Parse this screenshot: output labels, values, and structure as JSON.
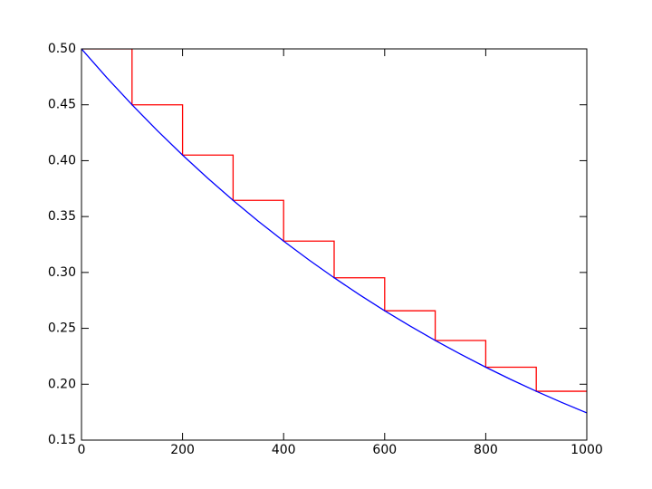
{
  "chart_data": {
    "type": "line",
    "xlim": [
      0,
      1000
    ],
    "xticks": [
      0,
      200,
      400,
      600,
      800,
      1000
    ],
    "ylim": [
      0.15,
      0.5
    ],
    "yticks": [
      0.15,
      {
        "value": 0.2,
        "label": "0.20"
      },
      0.25,
      {
        "value": 0.3,
        "label": "0.30"
      },
      0.35,
      {
        "value": 0.4,
        "label": "0.40"
      },
      0.45,
      {
        "value": 0.5,
        "label": "0.50"
      }
    ],
    "grid": false,
    "series": [
      {
        "color": "#ff0000",
        "x": [
          0,
          100,
          100,
          200,
          200,
          300,
          300,
          400,
          400,
          500,
          500,
          600,
          600,
          700,
          700,
          800,
          800,
          900,
          900,
          1000
        ],
        "values": [
          0.5,
          0.5,
          0.45,
          0.45,
          0.405,
          0.405,
          0.3645,
          0.3645,
          0.32805,
          0.32805,
          0.295245,
          0.295245,
          0.26572,
          0.26572,
          0.23915,
          0.23915,
          0.21523,
          0.21523,
          0.19371,
          0.19371
        ]
      },
      {
        "color": "#0000ff",
        "x": [
          0,
          50,
          100,
          150,
          200,
          250,
          300,
          350,
          400,
          450,
          500,
          550,
          600,
          650,
          700,
          750,
          800,
          850,
          900,
          950,
          1000
        ],
        "values": [
          0.5,
          0.47434,
          0.45,
          0.42691,
          0.405,
          0.38422,
          0.3645,
          0.3458,
          0.32805,
          0.31122,
          0.29525,
          0.2801,
          0.26572,
          0.25209,
          0.23915,
          0.22688,
          0.21523,
          0.20419,
          0.19371,
          0.18377,
          0.17434
        ]
      }
    ]
  }
}
